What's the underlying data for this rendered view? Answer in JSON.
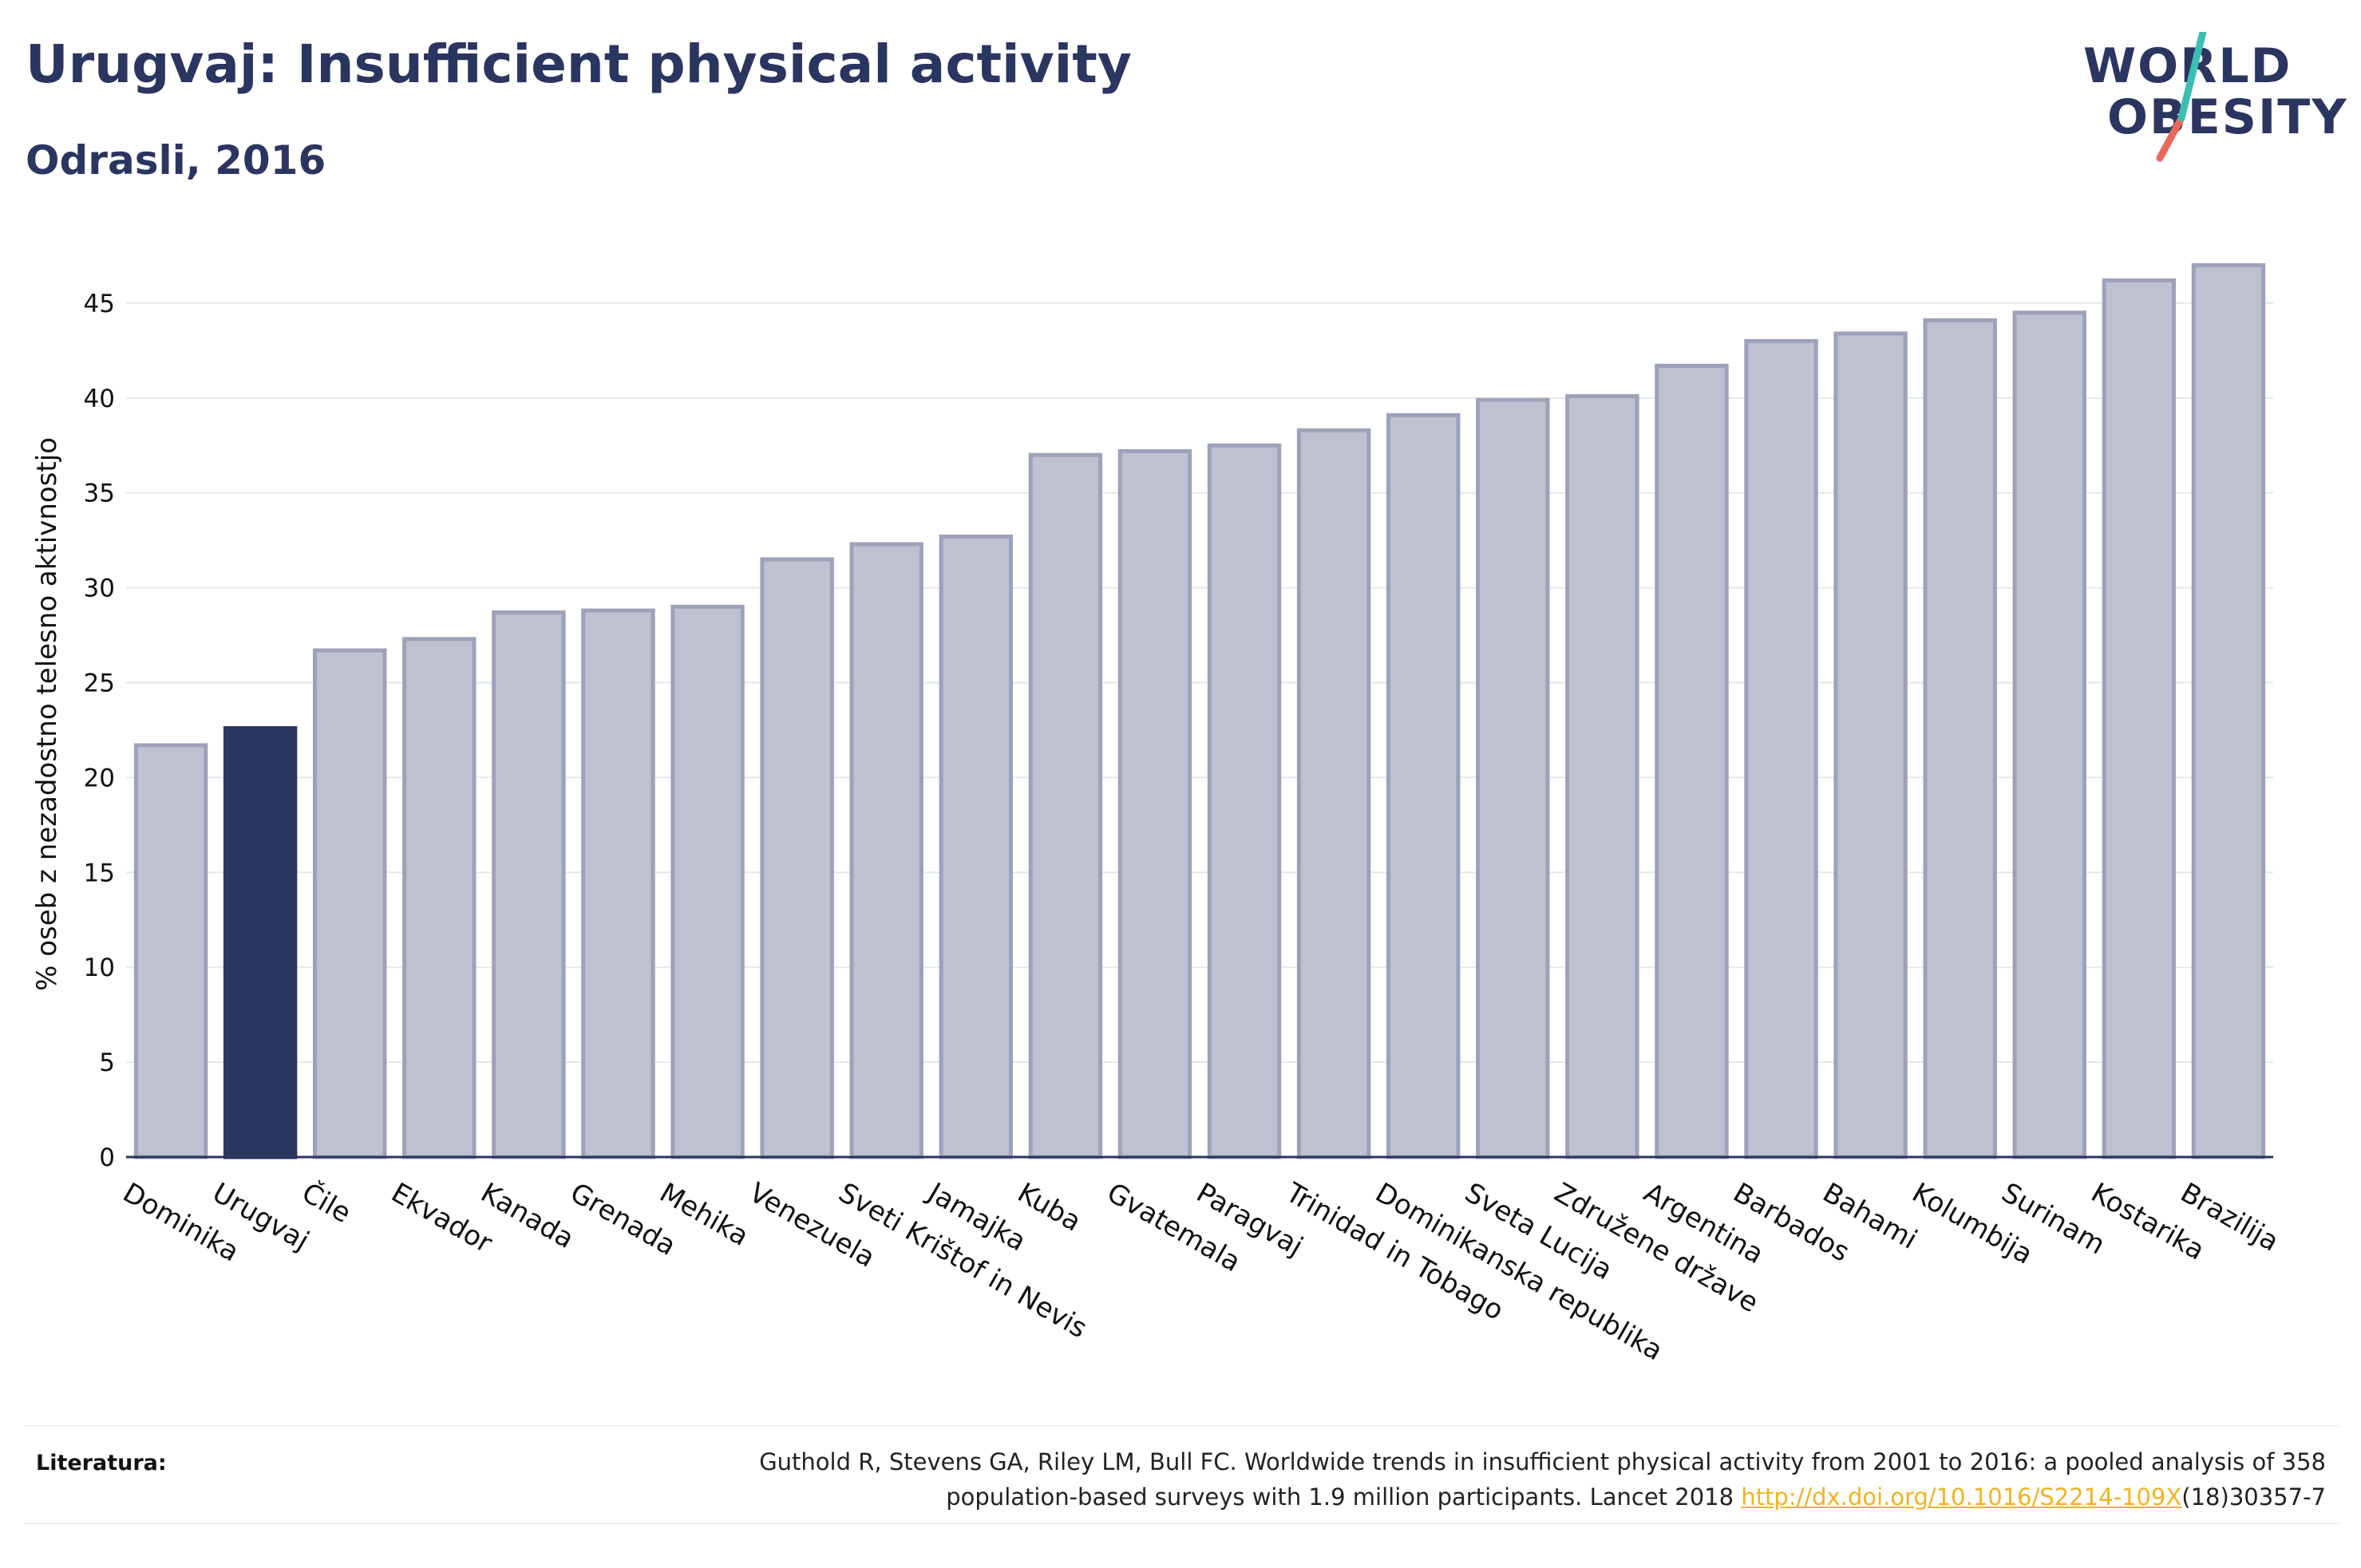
{
  "header": {
    "title": "Urugvaj: Insufficient physical activity",
    "subtitle": "Odrasli, 2016"
  },
  "logo": {
    "line1": "WORLD",
    "line2": "OBESITY"
  },
  "colors": {
    "highlight": "#2a3560",
    "bar_fill": "#bec1cf",
    "bar_stroke": "#9da2ba",
    "text": "#2a3560",
    "link": "#f0b323",
    "logo_slash_red": "#e8685c",
    "logo_slash_teal": "#3bbfb1"
  },
  "chart_data": {
    "type": "bar",
    "ylabel": "% oseb z nezadostno telesno aktivnostjo",
    "xlabel": "",
    "ylim": [
      0,
      48
    ],
    "yticks": [
      0,
      5,
      10,
      15,
      20,
      25,
      30,
      35,
      40,
      45
    ],
    "grid": true,
    "highlight_category": "Urugvaj",
    "categories": [
      "Dominika",
      "Urugvaj",
      "Čile",
      "Ekvador",
      "Kanada",
      "Grenada",
      "Mehika",
      "Venezuela",
      "Sveti Krištof in Nevis",
      "Jamajka",
      "Kuba",
      "Gvatemala",
      "Paragvaj",
      "Trinidad in Tobago",
      "Dominikanska republika",
      "Sveta Lucija",
      "Združene države",
      "Argentina",
      "Barbados",
      "Bahami",
      "Kolumbija",
      "Surinam",
      "Kostarika",
      "Brazilija"
    ],
    "values": [
      21.7,
      22.6,
      26.7,
      27.3,
      28.7,
      28.8,
      29.0,
      31.5,
      32.3,
      32.7,
      37.0,
      37.2,
      37.5,
      38.3,
      39.1,
      39.9,
      40.1,
      41.7,
      43.0,
      43.4,
      44.1,
      44.5,
      46.2,
      47.0
    ]
  },
  "footer": {
    "label": "Literatura:",
    "citation_line1": "Guthold R, Stevens GA, Riley LM, Bull FC. Worldwide trends in insufficient physical activity from 2001 to 2016: a pooled analysis of 358",
    "citation_line2_pre": "population-based surveys with 1.9 million participants. Lancet 2018 ",
    "citation_link": "http://dx.doi.org/10.1016/S2214-109X",
    "citation_line2_post": "(18)30357-7"
  }
}
